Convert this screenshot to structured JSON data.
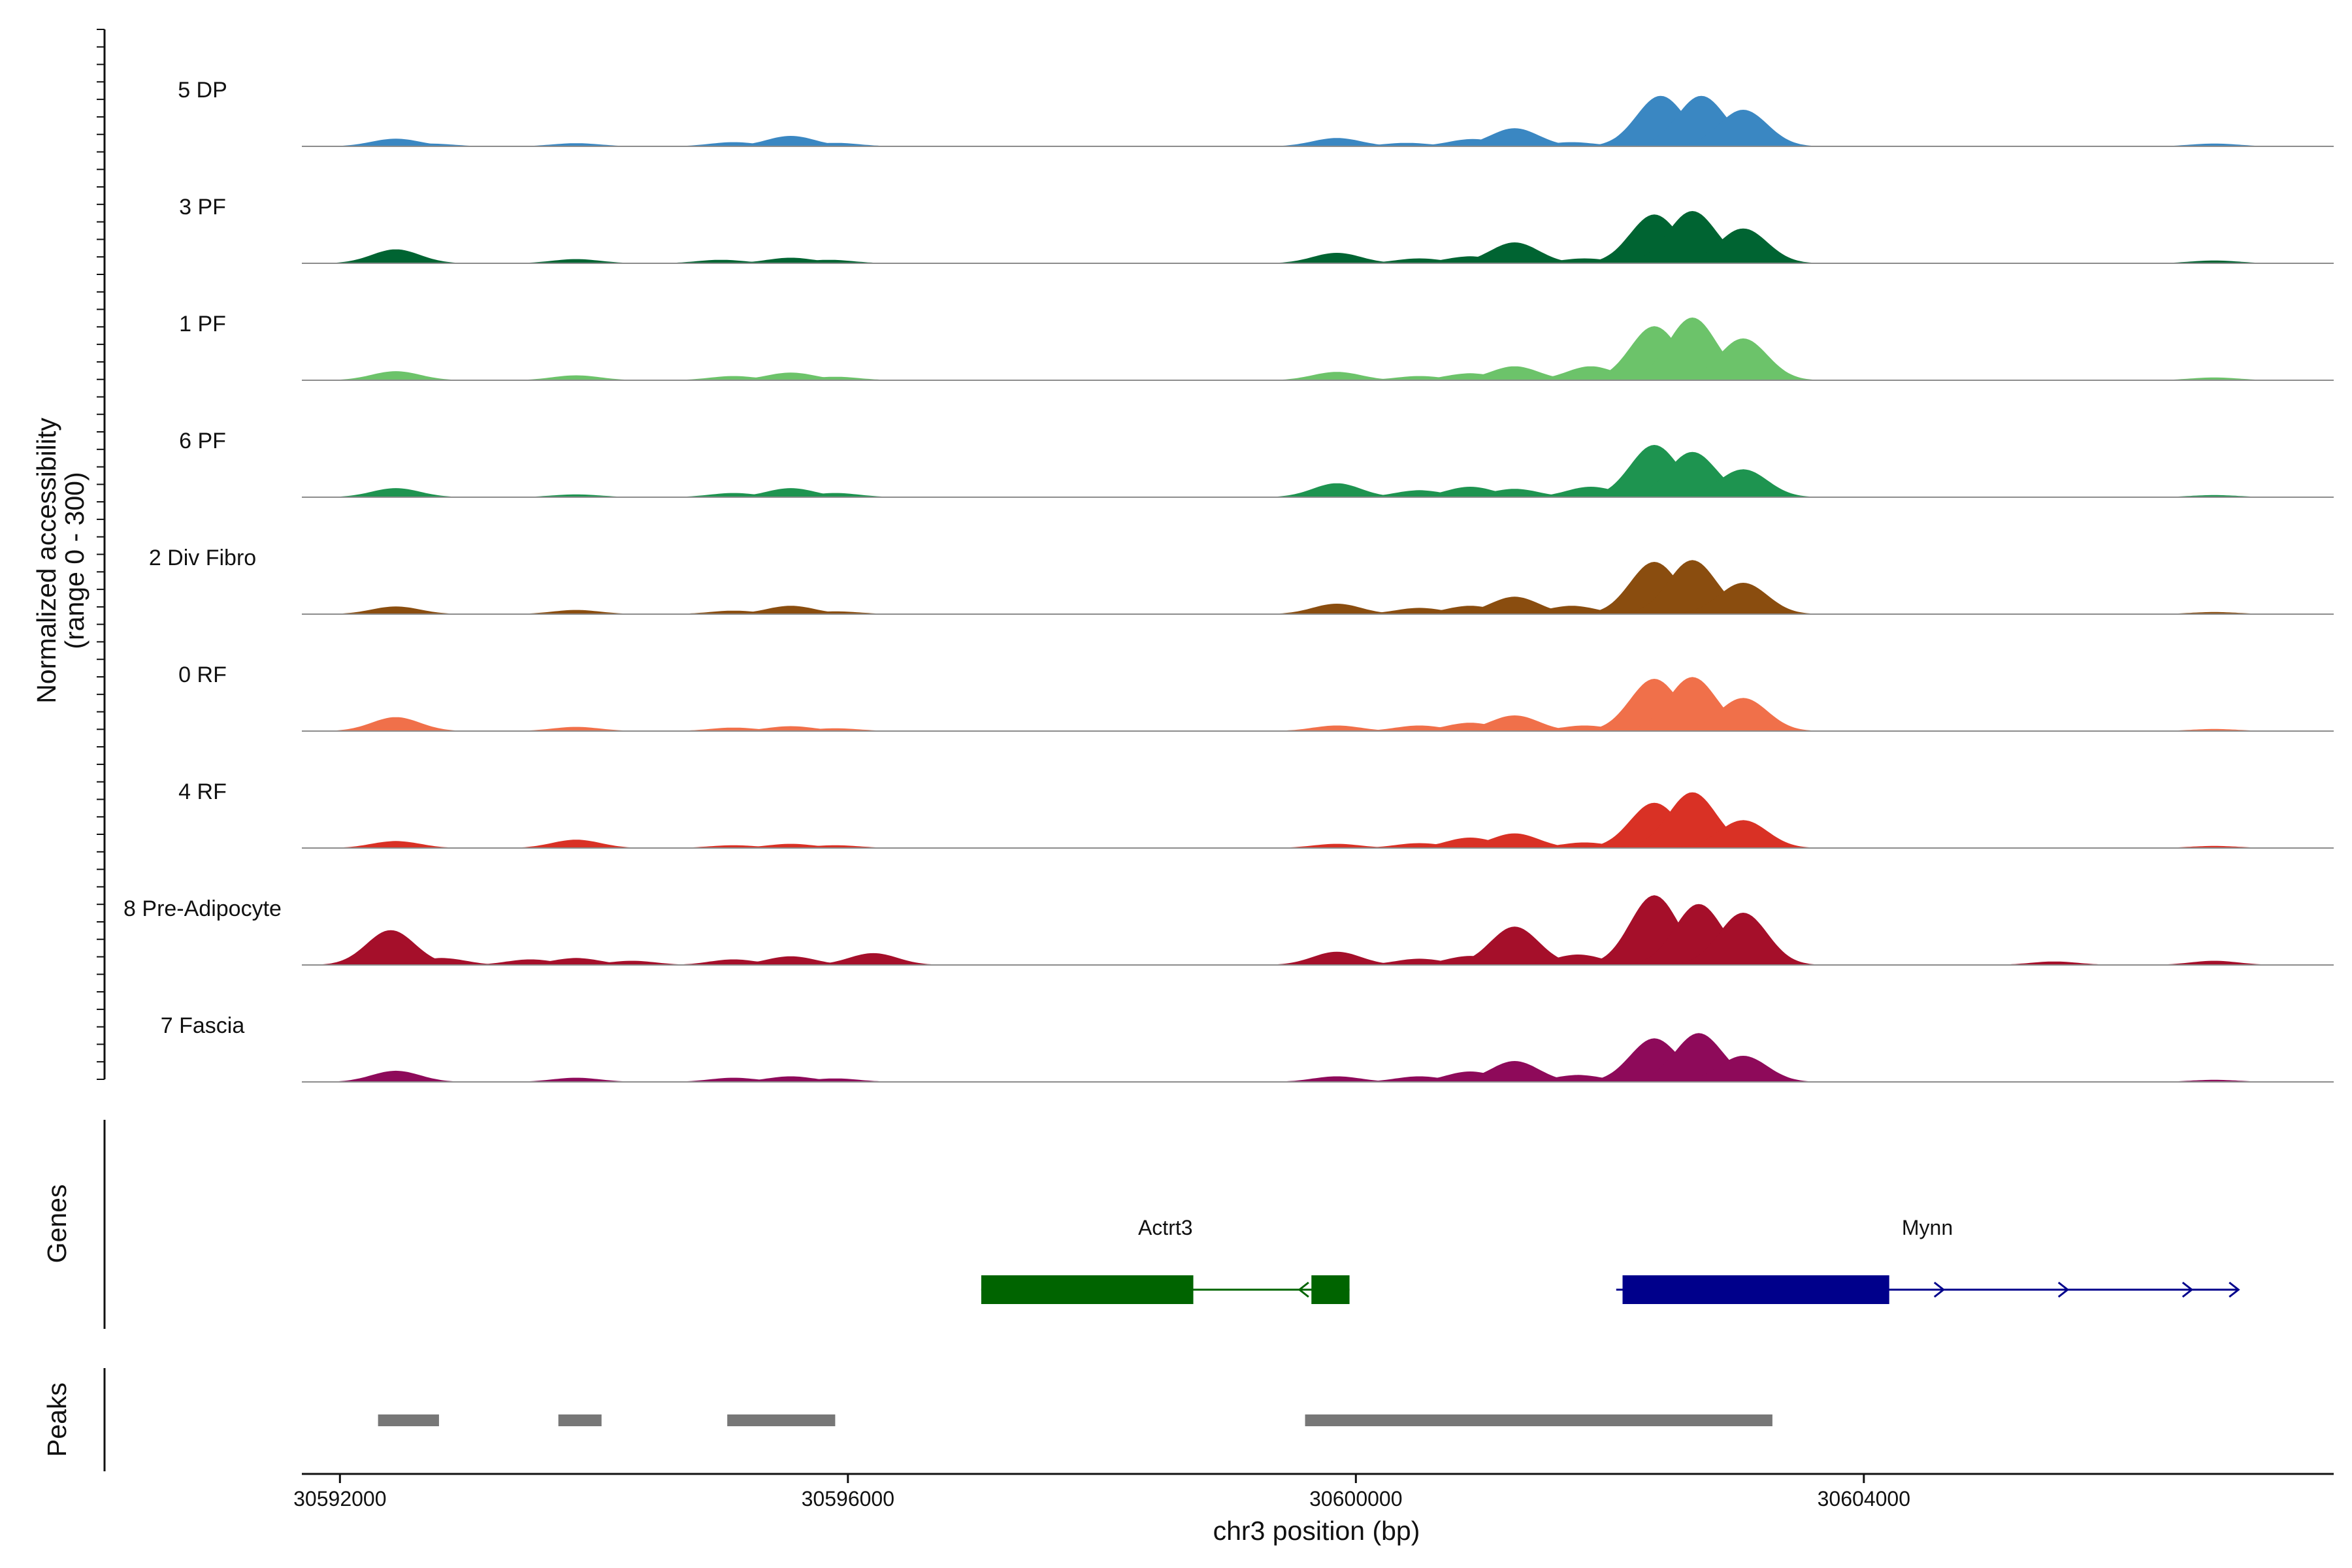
{
  "chart_data": {
    "type": "area",
    "title": "",
    "ylabel_line1": "Normalized accessibility",
    "ylabel_line2": "(range 0 - 300)",
    "xlabel": "chr3 position (bp)",
    "xlim": [
      30591700,
      30607700
    ],
    "x_ticks": [
      30592000,
      30596000,
      30600000,
      30604000
    ],
    "x_tick_labels": [
      "30592000",
      "30596000",
      "30600000",
      "30604000"
    ],
    "ylim": [
      0,
      300
    ],
    "peak_width_bp": 190,
    "tracks": [
      {
        "name": "5 DP",
        "color": "#3a87c2",
        "peaks": [
          [
            30592440,
            22
          ],
          [
            30592700,
            8
          ],
          [
            30593860,
            9
          ],
          [
            30595100,
            12
          ],
          [
            30595550,
            30
          ],
          [
            30595900,
            10
          ],
          [
            30599850,
            24
          ],
          [
            30600400,
            10
          ],
          [
            30600920,
            21
          ],
          [
            30601250,
            52
          ],
          [
            30601700,
            12
          ],
          [
            30602400,
            145
          ],
          [
            30602720,
            145
          ],
          [
            30603050,
            105
          ],
          [
            30606760,
            8
          ]
        ]
      },
      {
        "name": "3 PF",
        "color": "#006432",
        "peaks": [
          [
            30592440,
            40
          ],
          [
            30593860,
            12
          ],
          [
            30595000,
            10
          ],
          [
            30595550,
            16
          ],
          [
            30595850,
            10
          ],
          [
            30599850,
            30
          ],
          [
            30600500,
            14
          ],
          [
            30600900,
            20
          ],
          [
            30601250,
            60
          ],
          [
            30601800,
            14
          ],
          [
            30602350,
            140
          ],
          [
            30602650,
            150
          ],
          [
            30603050,
            100
          ],
          [
            30606760,
            8
          ]
        ]
      },
      {
        "name": "1 PF",
        "color": "#6cc36a",
        "peaks": [
          [
            30592440,
            26
          ],
          [
            30593860,
            14
          ],
          [
            30595100,
            12
          ],
          [
            30595550,
            22
          ],
          [
            30595900,
            10
          ],
          [
            30599850,
            24
          ],
          [
            30600500,
            12
          ],
          [
            30600900,
            20
          ],
          [
            30601250,
            40
          ],
          [
            30601850,
            40
          ],
          [
            30602350,
            155
          ],
          [
            30602650,
            180
          ],
          [
            30603050,
            120
          ],
          [
            30606760,
            8
          ]
        ]
      },
      {
        "name": "6 PF",
        "color": "#1e9450",
        "peaks": [
          [
            30592440,
            26
          ],
          [
            30593860,
            8
          ],
          [
            30595100,
            12
          ],
          [
            30595550,
            26
          ],
          [
            30595900,
            12
          ],
          [
            30599850,
            40
          ],
          [
            30600500,
            20
          ],
          [
            30600900,
            30
          ],
          [
            30601250,
            24
          ],
          [
            30601850,
            30
          ],
          [
            30602350,
            150
          ],
          [
            30602650,
            130
          ],
          [
            30603050,
            80
          ],
          [
            30606760,
            6
          ]
        ]
      },
      {
        "name": "2 Div Fibro",
        "color": "#8a4d0f",
        "peaks": [
          [
            30592440,
            22
          ],
          [
            30593860,
            12
          ],
          [
            30595100,
            10
          ],
          [
            30595550,
            24
          ],
          [
            30595900,
            8
          ],
          [
            30599850,
            30
          ],
          [
            30600500,
            18
          ],
          [
            30600900,
            24
          ],
          [
            30601250,
            50
          ],
          [
            30601700,
            24
          ],
          [
            30602350,
            150
          ],
          [
            30602650,
            155
          ],
          [
            30603050,
            90
          ],
          [
            30606760,
            6
          ]
        ]
      },
      {
        "name": "0 RF",
        "color": "#f0704a",
        "peaks": [
          [
            30592440,
            40
          ],
          [
            30593860,
            12
          ],
          [
            30595100,
            10
          ],
          [
            30595550,
            14
          ],
          [
            30595900,
            8
          ],
          [
            30599850,
            16
          ],
          [
            30600500,
            16
          ],
          [
            30600900,
            24
          ],
          [
            30601250,
            45
          ],
          [
            30601800,
            16
          ],
          [
            30602350,
            150
          ],
          [
            30602650,
            155
          ],
          [
            30603050,
            95
          ],
          [
            30606760,
            6
          ]
        ]
      },
      {
        "name": "4 RF",
        "color": "#d93125",
        "peaks": [
          [
            30592440,
            20
          ],
          [
            30593860,
            24
          ],
          [
            30595100,
            8
          ],
          [
            30595550,
            12
          ],
          [
            30595900,
            8
          ],
          [
            30599850,
            12
          ],
          [
            30600500,
            14
          ],
          [
            30600900,
            30
          ],
          [
            30601250,
            42
          ],
          [
            30601800,
            16
          ],
          [
            30602350,
            130
          ],
          [
            30602650,
            160
          ],
          [
            30603050,
            80
          ],
          [
            30606760,
            6
          ]
        ]
      },
      {
        "name": "8 Pre-Adipocyte",
        "color": "#a50f2a",
        "peaks": [
          [
            30592400,
            100
          ],
          [
            30592800,
            20
          ],
          [
            30593500,
            16
          ],
          [
            30593860,
            20
          ],
          [
            30594300,
            12
          ],
          [
            30595100,
            16
          ],
          [
            30595550,
            25
          ],
          [
            30596200,
            34
          ],
          [
            30599850,
            38
          ],
          [
            30600500,
            18
          ],
          [
            30600900,
            26
          ],
          [
            30601250,
            110
          ],
          [
            30601750,
            30
          ],
          [
            30602350,
            200
          ],
          [
            30602700,
            175
          ],
          [
            30603050,
            150
          ],
          [
            30605500,
            10
          ],
          [
            30606760,
            12
          ]
        ]
      },
      {
        "name": "7 Fascia",
        "color": "#8e0a5a",
        "peaks": [
          [
            30592440,
            32
          ],
          [
            30593860,
            12
          ],
          [
            30595100,
            12
          ],
          [
            30595550,
            16
          ],
          [
            30595900,
            10
          ],
          [
            30599850,
            16
          ],
          [
            30600500,
            16
          ],
          [
            30600900,
            30
          ],
          [
            30601250,
            60
          ],
          [
            30601750,
            20
          ],
          [
            30602350,
            125
          ],
          [
            30602700,
            140
          ],
          [
            30603050,
            75
          ],
          [
            30606760,
            6
          ]
        ]
      }
    ],
    "genes_label": "Genes",
    "genes": [
      {
        "name": "Actrt3",
        "strand": "-",
        "color": "#006400",
        "start": 30597050,
        "end": 30599950,
        "exons": [
          [
            30597050,
            30598720
          ],
          [
            30599650,
            30599950
          ]
        ]
      },
      {
        "name": "Mynn",
        "strand": "+",
        "color": "#00008b",
        "start": 30602050,
        "end": 30606950,
        "exons": [
          [
            30602100,
            30604200
          ]
        ]
      }
    ],
    "peaks_label": "Peaks",
    "peak_regions": [
      [
        30592300,
        30592780
      ],
      [
        30593720,
        30594060
      ],
      [
        30595050,
        30595900
      ],
      [
        30599600,
        30603280
      ]
    ],
    "peak_region_color": "#777777"
  }
}
